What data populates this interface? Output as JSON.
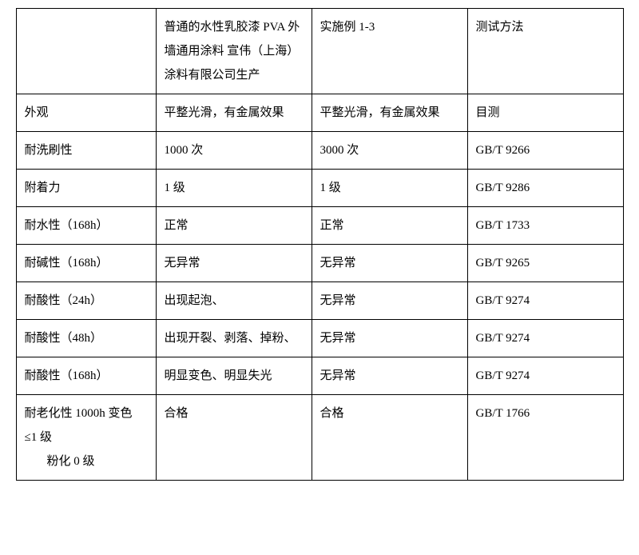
{
  "table": {
    "header": {
      "col1": "",
      "col2": "普通的水性乳胶漆 PVA 外墙通用涂料 宣伟（上海）涂料有限公司生产",
      "col3": "实施例 1-3",
      "col4": "测试方法"
    },
    "rows": [
      {
        "c1": "外观",
        "c2": "平整光滑，有金属效果",
        "c3": "平整光滑，有金属效果",
        "c4": "目测"
      },
      {
        "c1": "耐洗刷性",
        "c2": "1000 次",
        "c3": "3000 次",
        "c4": "GB/T 9266"
      },
      {
        "c1": "附着力",
        "c2": "1 级",
        "c3": "1 级",
        "c4": "GB/T 9286"
      },
      {
        "c1": "耐水性（168h）",
        "c2": "正常",
        "c3": "正常",
        "c4": "GB/T 1733"
      },
      {
        "c1": "耐碱性（168h）",
        "c2": "无异常",
        "c3": "无异常",
        "c4": "GB/T 9265"
      },
      {
        "c1": "耐酸性（24h）",
        "c2": "出现起泡、",
        "c3": "无异常",
        "c4": "GB/T 9274"
      },
      {
        "c1": "耐酸性（48h）",
        "c2": "出现开裂、剥落、掉粉、",
        "c3": "无异常",
        "c4": "GB/T 9274"
      },
      {
        "c1": "耐酸性（168h）",
        "c2": "明显变色、明显失光",
        "c3": "无异常",
        "c4": "GB/T 9274"
      },
      {
        "c1_line1": "耐老化性 1000h 变色",
        "c1_line2": "≤1 级",
        "c1_line3": "粉化 0 级",
        "c2": "合格",
        "c3": "合格",
        "c4": "GB/T 1766"
      }
    ]
  }
}
